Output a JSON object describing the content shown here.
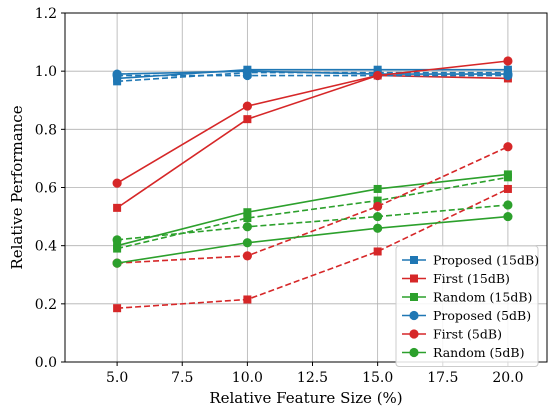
{
  "chart_data": {
    "type": "line",
    "title": "",
    "xlabel": "Relative Feature Size (%)",
    "ylabel": "Relative Performance",
    "xlim": [
      3.0,
      21.5
    ],
    "ylim": [
      0.0,
      1.2
    ],
    "xticks": [
      "5.0",
      "7.5",
      "10.0",
      "12.5",
      "15.0",
      "17.5",
      "20.0"
    ],
    "yticks": [
      "0.0",
      "0.2",
      "0.4",
      "0.6",
      "0.8",
      "1.0",
      "1.2"
    ],
    "grid": true,
    "legend_position": "bottom-right",
    "colors": {
      "proposed": "#1f77b4",
      "first": "#d62728",
      "random": "#2ca02c"
    },
    "legend": [
      {
        "name": "Proposed (15dB)",
        "color": "#1f77b4",
        "marker": "square"
      },
      {
        "name": "First (15dB)",
        "color": "#d62728",
        "marker": "square"
      },
      {
        "name": "Random (15dB)",
        "color": "#2ca02c",
        "marker": "square"
      },
      {
        "name": "Proposed (5dB)",
        "color": "#1f77b4",
        "marker": "circle"
      },
      {
        "name": "First (5dB)",
        "color": "#d62728",
        "marker": "circle"
      },
      {
        "name": "Random (5dB)",
        "color": "#2ca02c",
        "marker": "circle"
      }
    ],
    "series": [
      {
        "group": "Proposed (15dB)",
        "color": "#1f77b4",
        "marker": "square",
        "dash": "solid",
        "x": [
          5,
          10,
          15,
          20
        ],
        "y": [
          0.975,
          1.005,
          1.005,
          1.005
        ]
      },
      {
        "group": "Proposed (15dB)",
        "color": "#1f77b4",
        "marker": "square",
        "dash": "dashed",
        "x": [
          5,
          10,
          15,
          20
        ],
        "y": [
          0.965,
          0.995,
          0.995,
          0.995
        ]
      },
      {
        "group": "First (15dB)",
        "color": "#d62728",
        "marker": "square",
        "dash": "solid",
        "x": [
          5,
          10,
          15,
          20
        ],
        "y": [
          0.53,
          0.835,
          0.985,
          0.975
        ]
      },
      {
        "group": "First (15dB)",
        "color": "#d62728",
        "marker": "square",
        "dash": "dashed",
        "x": [
          5,
          10,
          15,
          20
        ],
        "y": [
          0.185,
          0.215,
          0.38,
          0.595
        ]
      },
      {
        "group": "Random (15dB)",
        "color": "#2ca02c",
        "marker": "square",
        "dash": "solid",
        "x": [
          5,
          10,
          15,
          20
        ],
        "y": [
          0.4,
          0.515,
          0.595,
          0.645
        ]
      },
      {
        "group": "Random (15dB)",
        "color": "#2ca02c",
        "marker": "square",
        "dash": "dashed",
        "x": [
          5,
          10,
          15,
          20
        ],
        "y": [
          0.39,
          0.495,
          0.555,
          0.635
        ]
      },
      {
        "group": "Proposed (5dB)",
        "color": "#1f77b4",
        "marker": "circle",
        "dash": "solid",
        "x": [
          5,
          10,
          15,
          20
        ],
        "y": [
          0.99,
          1.0,
          0.99,
          0.99
        ]
      },
      {
        "group": "Proposed (5dB)",
        "color": "#1f77b4",
        "marker": "circle",
        "dash": "dashed",
        "x": [
          5,
          10,
          15,
          20
        ],
        "y": [
          0.985,
          0.985,
          0.985,
          0.985
        ]
      },
      {
        "group": "First (5dB)",
        "color": "#d62728",
        "marker": "circle",
        "dash": "solid",
        "x": [
          5,
          10,
          15,
          20
        ],
        "y": [
          0.615,
          0.88,
          0.985,
          1.035
        ]
      },
      {
        "group": "First (5dB)",
        "color": "#d62728",
        "marker": "circle",
        "dash": "dashed",
        "x": [
          5,
          10,
          15,
          20
        ],
        "y": [
          0.34,
          0.365,
          0.535,
          0.74
        ]
      },
      {
        "group": "Random (5dB)",
        "color": "#2ca02c",
        "marker": "circle",
        "dash": "solid",
        "x": [
          5,
          10,
          15,
          20
        ],
        "y": [
          0.34,
          0.41,
          0.46,
          0.5
        ]
      },
      {
        "group": "Random (5dB)",
        "color": "#2ca02c",
        "marker": "circle",
        "dash": "dashed",
        "x": [
          5,
          10,
          15,
          20
        ],
        "y": [
          0.42,
          0.465,
          0.5,
          0.54
        ]
      }
    ]
  }
}
